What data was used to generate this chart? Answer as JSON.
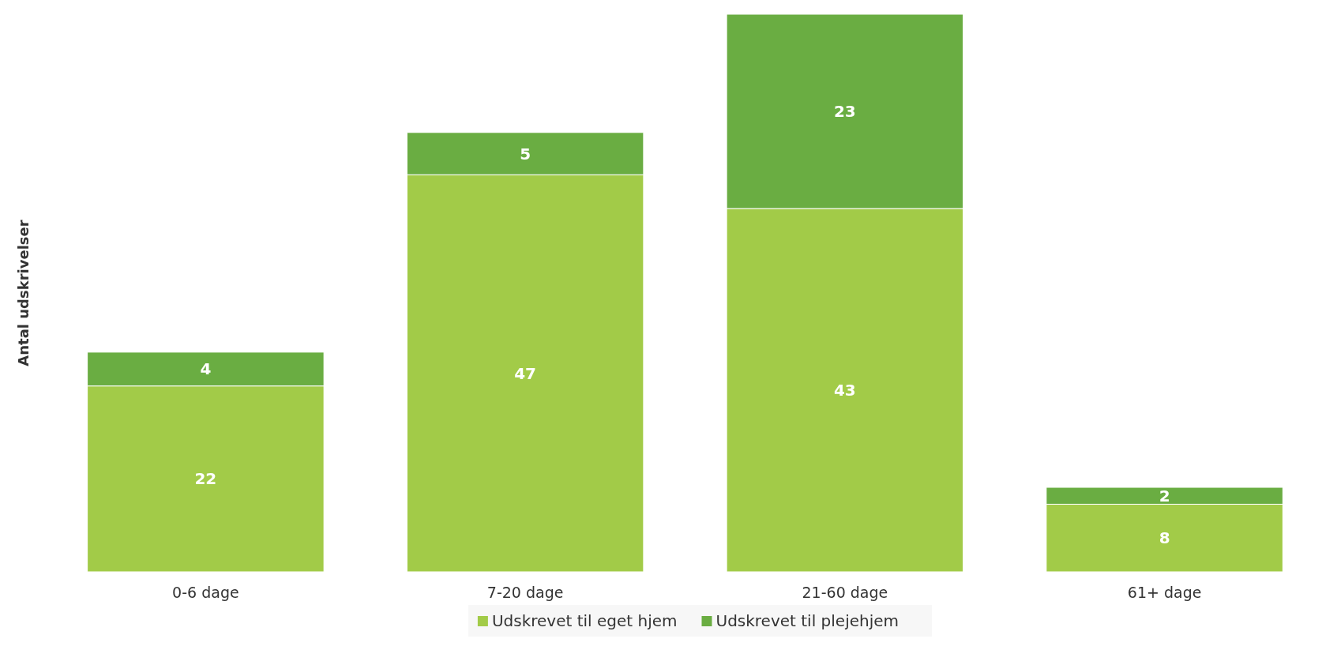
{
  "chart_data": {
    "type": "bar",
    "stacked": true,
    "ylabel": "Antal udskrivelser",
    "categories": [
      "0-6 dage",
      "7-20 dage",
      "21-60 dage",
      "61+ dage"
    ],
    "series": [
      {
        "name": "Udskrevet til eget hjem",
        "color": "#a2cb48",
        "values": [
          22,
          47,
          43,
          8
        ]
      },
      {
        "name": "Udskrevet til plejehjem",
        "color": "#6aad42",
        "values": [
          4,
          5,
          23,
          2
        ]
      }
    ],
    "data_labels": true,
    "legend": "bottom"
  }
}
